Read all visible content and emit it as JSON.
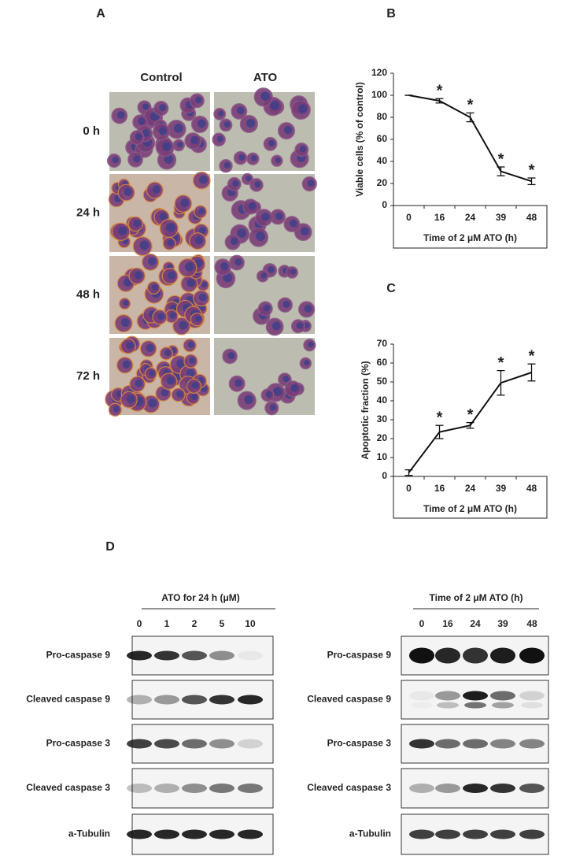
{
  "panel_labels": [
    "A",
    "B",
    "C",
    "D"
  ],
  "panel_a": {
    "columns": [
      "Control",
      "ATO"
    ],
    "rows": [
      "0 h",
      "24 h",
      "48 h",
      "72 h"
    ]
  },
  "chart_data": [
    {
      "type": "line",
      "ylabel": "Viable cells (% of control)",
      "xlabel": "Time of 2 μM ATO (h)",
      "categories": [
        "0",
        "16",
        "24",
        "39",
        "48"
      ],
      "values": [
        100,
        95,
        80,
        31,
        22
      ],
      "errors": [
        0,
        2,
        4,
        4,
        3
      ],
      "markers": [
        null,
        "*",
        "*",
        "*",
        "*"
      ],
      "color": "#111111",
      "ylim": [
        0,
        120
      ],
      "yticks": [
        0,
        20,
        40,
        60,
        80,
        100,
        120
      ]
    },
    {
      "type": "line",
      "ylabel": "Apoptotic fraction (%)",
      "xlabel": "Time of 2 μM ATO (h)",
      "categories": [
        "0",
        "16",
        "24",
        "39",
        "48"
      ],
      "values": [
        2,
        23.5,
        27,
        49.5,
        55
      ],
      "errors": [
        1.5,
        3.5,
        1.5,
        6.5,
        4.5
      ],
      "markers": [
        null,
        "*",
        "*",
        "*",
        "*"
      ],
      "color": "#111111",
      "ylim": [
        0,
        70
      ],
      "yticks": [
        0,
        10,
        20,
        30,
        40,
        50,
        60,
        70
      ]
    }
  ],
  "panel_d": {
    "left": {
      "header": "ATO for 24 h (μM)",
      "lanes": [
        "0",
        "1",
        "2",
        "5",
        "10"
      ],
      "rows": [
        "Pro-caspase 9",
        "Cleaved caspase 9",
        "Pro-caspase 3",
        "Cleaved caspase 3",
        "a-Tubulin"
      ]
    },
    "right": {
      "header": "Time of 2 μM ATO (h)",
      "lanes": [
        "0",
        "16",
        "24",
        "39",
        "48"
      ],
      "rows": [
        "Pro-caspase 9",
        "Cleaved caspase 9",
        "Pro-caspase 3",
        "Cleaved caspase 3",
        "a-Tubulin"
      ]
    }
  }
}
